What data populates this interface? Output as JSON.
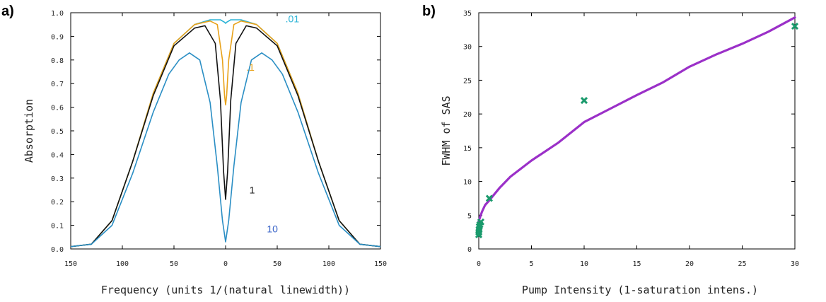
{
  "chart_data": [
    {
      "panel_label": "a)",
      "type": "line",
      "xlabel": "Frequency (units 1/(natural linewidth))",
      "ylabel": "Absorption",
      "xlim": [
        -150,
        150
      ],
      "ylim": [
        0.0,
        1.0
      ],
      "x_ticks": [
        -150,
        -100,
        -50,
        0,
        50,
        100,
        150
      ],
      "x_tick_labels": [
        "150",
        "100",
        "50",
        "0",
        "50",
        "100",
        "150"
      ],
      "y_ticks": [
        0.0,
        0.1,
        0.2,
        0.3,
        0.4,
        0.5,
        0.6,
        0.7,
        0.8,
        0.9,
        1.0
      ],
      "y_tick_labels": [
        "0.0",
        "0.1",
        "0.2",
        "0.3",
        "0.4",
        "0.5",
        "0.6",
        "0.7",
        "0.8",
        "0.9",
        "1.0"
      ],
      "grid": false,
      "series": [
        {
          "name": ".01",
          "color": "#2bb3d6",
          "x": [
            -150,
            -130,
            -110,
            -90,
            -70,
            -50,
            -30,
            -15,
            -5,
            -1,
            0,
            1,
            5,
            15,
            30,
            50,
            70,
            90,
            110,
            130,
            150
          ],
          "y": [
            0.01,
            0.02,
            0.12,
            0.37,
            0.66,
            0.87,
            0.95,
            0.97,
            0.97,
            0.96,
            0.955,
            0.96,
            0.97,
            0.97,
            0.95,
            0.87,
            0.66,
            0.37,
            0.12,
            0.02,
            0.01
          ]
        },
        {
          "name": ".1",
          "color": "#e8a21a",
          "x": [
            -150,
            -130,
            -110,
            -90,
            -70,
            -50,
            -30,
            -15,
            -8,
            -3,
            -1,
            0,
            1,
            3,
            8,
            15,
            30,
            50,
            70,
            90,
            110,
            130,
            150
          ],
          "y": [
            0.01,
            0.02,
            0.12,
            0.37,
            0.66,
            0.87,
            0.95,
            0.965,
            0.95,
            0.8,
            0.65,
            0.61,
            0.65,
            0.8,
            0.95,
            0.965,
            0.95,
            0.87,
            0.66,
            0.37,
            0.12,
            0.02,
            0.01
          ]
        },
        {
          "name": "1",
          "color": "#111111",
          "x": [
            -150,
            -130,
            -110,
            -90,
            -70,
            -50,
            -30,
            -20,
            -10,
            -5,
            -2,
            0,
            2,
            5,
            10,
            20,
            30,
            50,
            70,
            90,
            110,
            130,
            150
          ],
          "y": [
            0.01,
            0.02,
            0.12,
            0.37,
            0.65,
            0.86,
            0.935,
            0.945,
            0.87,
            0.63,
            0.33,
            0.21,
            0.33,
            0.63,
            0.87,
            0.945,
            0.935,
            0.86,
            0.65,
            0.37,
            0.12,
            0.02,
            0.01
          ]
        },
        {
          "name": "10",
          "color": "#2a8ec4",
          "x": [
            -150,
            -130,
            -110,
            -90,
            -70,
            -55,
            -45,
            -35,
            -25,
            -15,
            -8,
            -3,
            0,
            3,
            8,
            15,
            25,
            35,
            45,
            55,
            70,
            90,
            110,
            130,
            150
          ],
          "y": [
            0.01,
            0.02,
            0.1,
            0.32,
            0.58,
            0.74,
            0.8,
            0.83,
            0.8,
            0.62,
            0.35,
            0.12,
            0.03,
            0.12,
            0.35,
            0.62,
            0.8,
            0.83,
            0.8,
            0.74,
            0.58,
            0.32,
            0.1,
            0.02,
            0.01
          ]
        }
      ],
      "annotations": [
        {
          "text": ".01",
          "x": 58,
          "y": 0.96,
          "color": "#2bb3d6"
        },
        {
          "text": ".1",
          "x": 20,
          "y": 0.755,
          "color": "#e8a21a"
        },
        {
          "text": "1",
          "x": 23,
          "y": 0.235,
          "color": "#111111"
        },
        {
          "text": "10",
          "x": 40,
          "y": 0.07,
          "color": "#3a64c8"
        }
      ]
    },
    {
      "panel_label": "b)",
      "type": "scatter",
      "xlabel": "Pump Intensity (1-saturation intens.)",
      "ylabel": "FWHM of SAS",
      "xlim": [
        0,
        30
      ],
      "ylim": [
        0,
        35
      ],
      "x_ticks": [
        0,
        5,
        10,
        15,
        20,
        25,
        30
      ],
      "y_ticks": [
        0,
        5,
        10,
        15,
        20,
        25,
        30,
        35
      ],
      "grid": false,
      "series": [
        {
          "kind": "points",
          "color": "#1a9a6c",
          "x": [
            0.0,
            0.01,
            0.03,
            0.05,
            0.1,
            0.2,
            1,
            10,
            30
          ],
          "y": [
            2.1,
            2.5,
            2.9,
            3.3,
            3.6,
            4.0,
            7.5,
            22,
            33
          ]
        },
        {
          "kind": "fit",
          "color": "#9b30c8",
          "x": [
            0.01,
            0.1,
            0.3,
            0.6,
            1,
            2,
            3,
            5,
            7.5,
            10,
            12.5,
            15,
            17.5,
            20,
            22.5,
            25,
            27.5,
            30
          ],
          "y": [
            4.2,
            4.6,
            5.5,
            6.5,
            7.2,
            9.1,
            10.7,
            13.1,
            15.7,
            18.8,
            20.8,
            22.8,
            24.7,
            27.0,
            28.8,
            30.4,
            32.2,
            34.3
          ]
        }
      ]
    }
  ]
}
